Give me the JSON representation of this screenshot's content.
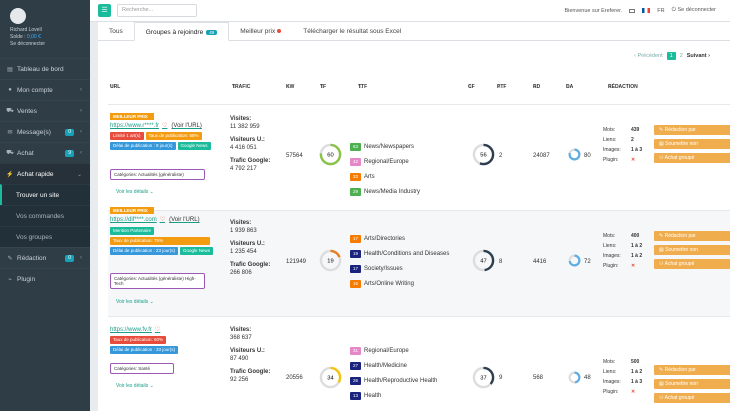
{
  "user": {
    "name": "Richard Lovell",
    "balance_label": "Solde :",
    "balance": "0,00 €",
    "logout": "Se déconnecter"
  },
  "sidebar": {
    "items": [
      {
        "label": "Tableau de bord",
        "icon": "dashboard-icon"
      },
      {
        "label": "Mon compte",
        "icon": "user-icon"
      },
      {
        "label": "Ventes",
        "icon": "cart-icon"
      },
      {
        "label": "Message(s)",
        "icon": "envelope-icon",
        "badge": "0"
      },
      {
        "label": "Achat",
        "icon": "bag-icon",
        "badge": "9"
      },
      {
        "label": "Achat rapide",
        "icon": "lightning-icon"
      },
      {
        "label": "Trouver un site"
      },
      {
        "label": "Vos commandes"
      },
      {
        "label": "Vos groupes"
      },
      {
        "label": "Rédaction",
        "icon": "pen-icon",
        "badge": "0"
      },
      {
        "label": "Plugin",
        "icon": "plug-icon"
      }
    ]
  },
  "topbar": {
    "search_placeholder": "Recherche...",
    "welcome": "Bienvenue sur Ereferer.",
    "lang": "FR",
    "logout": "Se déconnecter"
  },
  "tabs": {
    "all": "Tous",
    "groups": "Groupes à rejoindre",
    "groups_badge": "49",
    "best_price": "Meilleur prix",
    "download": "Télécharger le résultat sous Excel"
  },
  "pager": {
    "prev": "Précédent",
    "page1": "1",
    "page2": "2",
    "next": "Suivant"
  },
  "columns": {
    "url": "URL",
    "trafic": "TRAFIC",
    "kw": "KW",
    "tf": "TF",
    "ttf": "TTF",
    "cf": "CF",
    "ptf": "PTF",
    "rd": "RD",
    "da": "DA",
    "redaction": "RÉDACTION"
  },
  "labels": {
    "visites": "Visites:",
    "visiteurs": "Visiteurs U.:",
    "google": "Trafic Google:",
    "voir_url": "(Voir l'URL)",
    "voir_details": "Voir les détails",
    "mots": "Mots:",
    "liens": "Liens:",
    "images": "Images:",
    "plugin": "Plugin:",
    "redaction_btn": "Rédaction par",
    "soumettre_btn": "Soumettre non",
    "groupe_btn": "Achat groupé"
  },
  "rows": [
    {
      "ribbon": "MEILLEUR PRIX",
      "url": "https://www.r****.fr",
      "tags": [
        {
          "t": "Limité 1 art(s)",
          "c": "red"
        },
        {
          "t": "Taux de publication: 68%",
          "c": "orange"
        },
        {
          "t": "Délai de publication : 9 jour(s)",
          "c": "blue"
        },
        {
          "t": "Google News",
          "c": "teal"
        }
      ],
      "category": "Catégories: Actualités (généraliste)",
      "visites": "11 382 959",
      "visiteurs": "4 416 051",
      "google": "4 792 217",
      "kw": "57564",
      "tf": "60",
      "ttf": [
        {
          "n": "53",
          "l": "News/Newspapers",
          "c": "#4caf50"
        },
        {
          "n": "42",
          "l": "Regional/Europe",
          "c": "#e688c8"
        },
        {
          "n": "33",
          "l": "Arts",
          "c": "#f57c00"
        },
        {
          "n": "29",
          "l": "News/Media Industry",
          "c": "#4caf50"
        }
      ],
      "cf": "56",
      "ptf": "2",
      "rd": "24087",
      "da": "80",
      "mots": "439",
      "liens": "2",
      "images": "1 à 3",
      "plugin": "✕"
    },
    {
      "ribbon": "MEILLEUR PRIX",
      "url": "https://dif****.com",
      "tags": [
        {
          "t": "Mention Partenaire",
          "c": "teal"
        },
        {
          "t": "Taux de publication: 75%",
          "c": "orange"
        },
        {
          "t": "Délai de publication : 23 jour(s)",
          "c": "blue"
        },
        {
          "t": "Google News",
          "c": "teal"
        }
      ],
      "category": "Catégories: Actualités (généraliste) High-Tech",
      "visites": "1 939 863",
      "visiteurs": "1 235 454",
      "google": "266 806",
      "kw": "121949",
      "tf": "19",
      "ttf": [
        {
          "n": "17",
          "l": "Arts/Directories",
          "c": "#f57c00"
        },
        {
          "n": "19",
          "l": "Health/Conditions and Diseases",
          "c": "#1a237e"
        },
        {
          "n": "17",
          "l": "Society/Issues",
          "c": "#1a237e"
        },
        {
          "n": "16",
          "l": "Arts/Online Writing",
          "c": "#f57c00"
        }
      ],
      "cf": "47",
      "ptf": "8",
      "rd": "4416",
      "da": "72",
      "mots": "400",
      "liens": "1 à 2",
      "images": "1 à 2",
      "plugin": "✕"
    },
    {
      "ribbon": "",
      "url": "https://www.fv.fr",
      "tags": [
        {
          "t": "Taux de publication: 60%",
          "c": "red"
        },
        {
          "t": "Délai de publication : 33 jour(s)",
          "c": "blue"
        }
      ],
      "category": "Catégories: Santé",
      "visites": "368 637",
      "visiteurs": "87 490",
      "google": "92 256",
      "kw": "20556",
      "tf": "34",
      "ttf": [
        {
          "n": "31",
          "l": "Regional/Europe",
          "c": "#e688c8"
        },
        {
          "n": "27",
          "l": "Health/Medicine",
          "c": "#1a237e"
        },
        {
          "n": "26",
          "l": "Health/Reproductive Health",
          "c": "#1a237e"
        },
        {
          "n": "13",
          "l": "Health",
          "c": "#1a237e"
        }
      ],
      "cf": "37",
      "ptf": "9",
      "rd": "568",
      "da": "48",
      "mots": "500",
      "liens": "1 à 2",
      "images": "1 à 3",
      "plugin": "✕"
    }
  ],
  "colors": {
    "sidebar": "#2f3d46",
    "accent": "#1abc9c",
    "orange": "#f0ad4e"
  }
}
